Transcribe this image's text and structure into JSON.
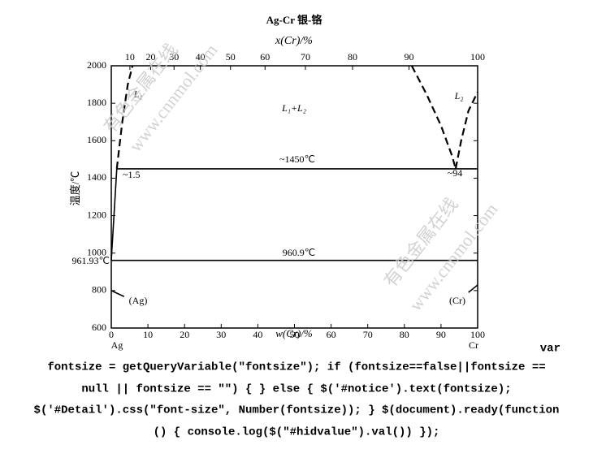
{
  "chart_data": {
    "type": "line",
    "title": "Ag-Cr  银-铬",
    "x2label": "x(Cr)/%",
    "xlabel": "w(Cr)/%",
    "ylabel": "温度/℃",
    "xlim": [
      0,
      100
    ],
    "ylim": [
      600,
      2000
    ],
    "xticks": [
      0,
      10,
      20,
      30,
      40,
      50,
      60,
      70,
      80,
      90,
      100
    ],
    "x2ticks": [
      {
        "value": 5.08,
        "label": "10"
      },
      {
        "value": 10.75,
        "label": "20"
      },
      {
        "value": 17.13,
        "label": "30"
      },
      {
        "value": 24.32,
        "label": "40"
      },
      {
        "value": 32.53,
        "label": "50"
      },
      {
        "value": 41.97,
        "label": "60"
      },
      {
        "value": 52.99,
        "label": "70"
      },
      {
        "value": 65.85,
        "label": "80"
      },
      {
        "value": 81.26,
        "label": "90"
      },
      {
        "value": 100,
        "label": "100"
      }
    ],
    "yticks": [
      600,
      800,
      1000,
      1200,
      1400,
      1600,
      1800,
      2000
    ],
    "series": [
      {
        "color": "#000000",
        "dashed": false,
        "x": [
          0,
          1.5
        ],
        "values": [
          961.93,
          1450
        ]
      },
      {
        "color": "#000000",
        "dashed": true,
        "x": [
          1.5,
          3,
          4.5,
          5.8
        ],
        "values": [
          1450,
          1700,
          1900,
          2000
        ]
      },
      {
        "color": "#000000",
        "dashed": true,
        "x": [
          82,
          86,
          90,
          93,
          94
        ],
        "values": [
          2000,
          1850,
          1680,
          1520,
          1450
        ]
      },
      {
        "color": "#000000",
        "dashed": true,
        "x": [
          94,
          95.5,
          97.5,
          100
        ],
        "values": [
          1450,
          1600,
          1760,
          1860
        ]
      },
      {
        "color": "#000000",
        "dashed": false,
        "x": [
          1.5,
          100
        ],
        "values": [
          1450,
          1450
        ]
      },
      {
        "color": "#000000",
        "dashed": false,
        "x": [
          0,
          100
        ],
        "values": [
          960.9,
          960.9
        ]
      },
      {
        "color": "#000000",
        "dashed": false,
        "x": [
          0,
          3.5
        ],
        "values": [
          800,
          768
        ]
      },
      {
        "color": "#000000",
        "dashed": false,
        "x": [
          97.5,
          100
        ],
        "values": [
          790,
          830
        ]
      }
    ],
    "annotations": [
      "L₁",
      "L₁+L₂",
      "L₂",
      "~1450℃",
      "~1.5",
      "~94",
      "960.9℃",
      "961.93℃",
      "(Ag)",
      "(Cr)",
      "Ag",
      "Cr"
    ],
    "watermarks": [
      "有色金属在线",
      "www.cnnmol.com",
      "有色金属在线",
      "www.cnnmol.com"
    ]
  },
  "page_text": [
    "var",
    "fontsize = getQueryVariable(\"fontsize\"); if (fontsize==false||fontsize ==",
    "null || fontsize == \"\") { } else { $('#notice').text(fontsize);",
    "$('#Detail').css(\"font-size\", Number(fontsize)); } $(document).ready(function",
    "() { console.log($(\"#hidvalue\").val()) });"
  ]
}
